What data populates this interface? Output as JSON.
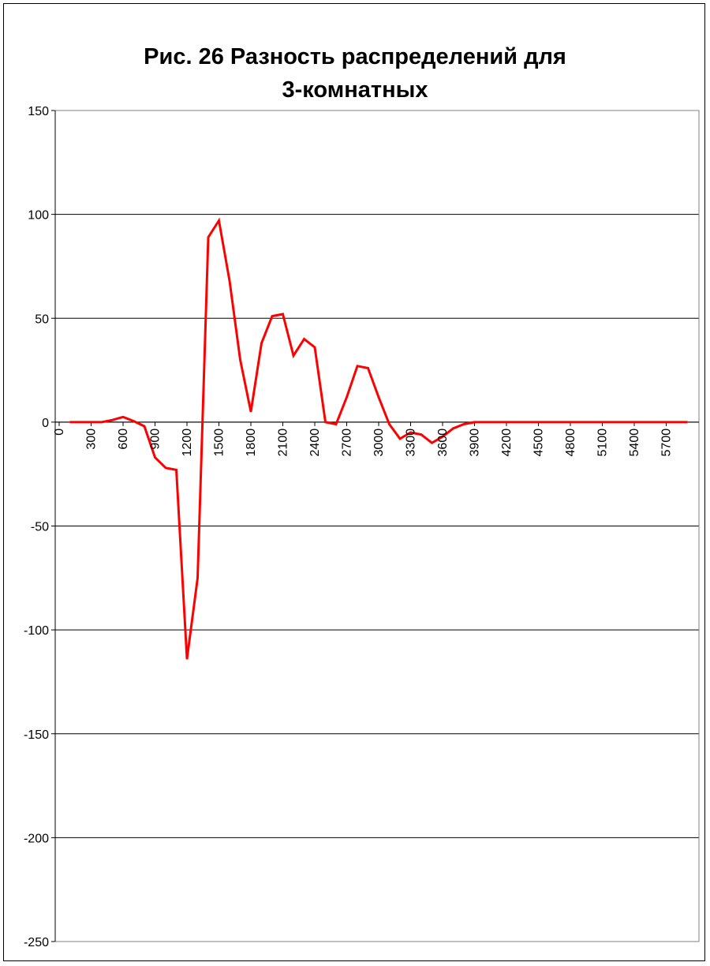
{
  "chart_data": {
    "type": "line",
    "title_lines": [
      "Рис. 26 Разность распределений для",
      "3-комнатных"
    ],
    "xlabel": "",
    "ylabel": "",
    "ylim": [
      -250,
      150
    ],
    "y_ticks": [
      150,
      100,
      50,
      0,
      -50,
      -100,
      -150,
      -200,
      -250
    ],
    "x_tick_labels": [
      "0",
      "300",
      "600",
      "900",
      "1200",
      "1500",
      "1800",
      "2100",
      "2400",
      "2700",
      "3000",
      "3300",
      "3600",
      "3900",
      "4200",
      "4500",
      "4800",
      "5100",
      "5400",
      "5700"
    ],
    "x_step": 100,
    "grid": true,
    "legend": "none",
    "series": [
      {
        "color": "#ff0000",
        "x": [
          100,
          200,
          300,
          400,
          500,
          600,
          700,
          800,
          900,
          1000,
          1100,
          1200,
          1300,
          1400,
          1500,
          1600,
          1700,
          1800,
          1900,
          2000,
          2100,
          2200,
          2300,
          2400,
          2500,
          2600,
          2700,
          2800,
          2900,
          3000,
          3100,
          3200,
          3300,
          3400,
          3500,
          3600,
          3700,
          3800,
          3900,
          4000,
          4100,
          4200,
          4300,
          4400,
          4500,
          4600,
          4700,
          4800,
          4900,
          5000,
          5100,
          5200,
          5300,
          5400,
          5500,
          5600,
          5700,
          5800,
          5900
        ],
        "values": [
          0,
          0,
          0,
          0,
          1,
          2.5,
          0.5,
          -2,
          -17,
          -22,
          -23,
          -114,
          -75,
          89,
          97,
          68,
          30,
          5,
          38,
          51,
          52,
          32,
          40,
          36,
          0,
          -1,
          12,
          27,
          26,
          12,
          -1,
          -8,
          -5,
          -6,
          -10,
          -7,
          -3,
          -1,
          0,
          0,
          0,
          0,
          0,
          0,
          0,
          0,
          0,
          0,
          0,
          0,
          0,
          0,
          0,
          0,
          0,
          0,
          0,
          0,
          0
        ]
      }
    ]
  }
}
